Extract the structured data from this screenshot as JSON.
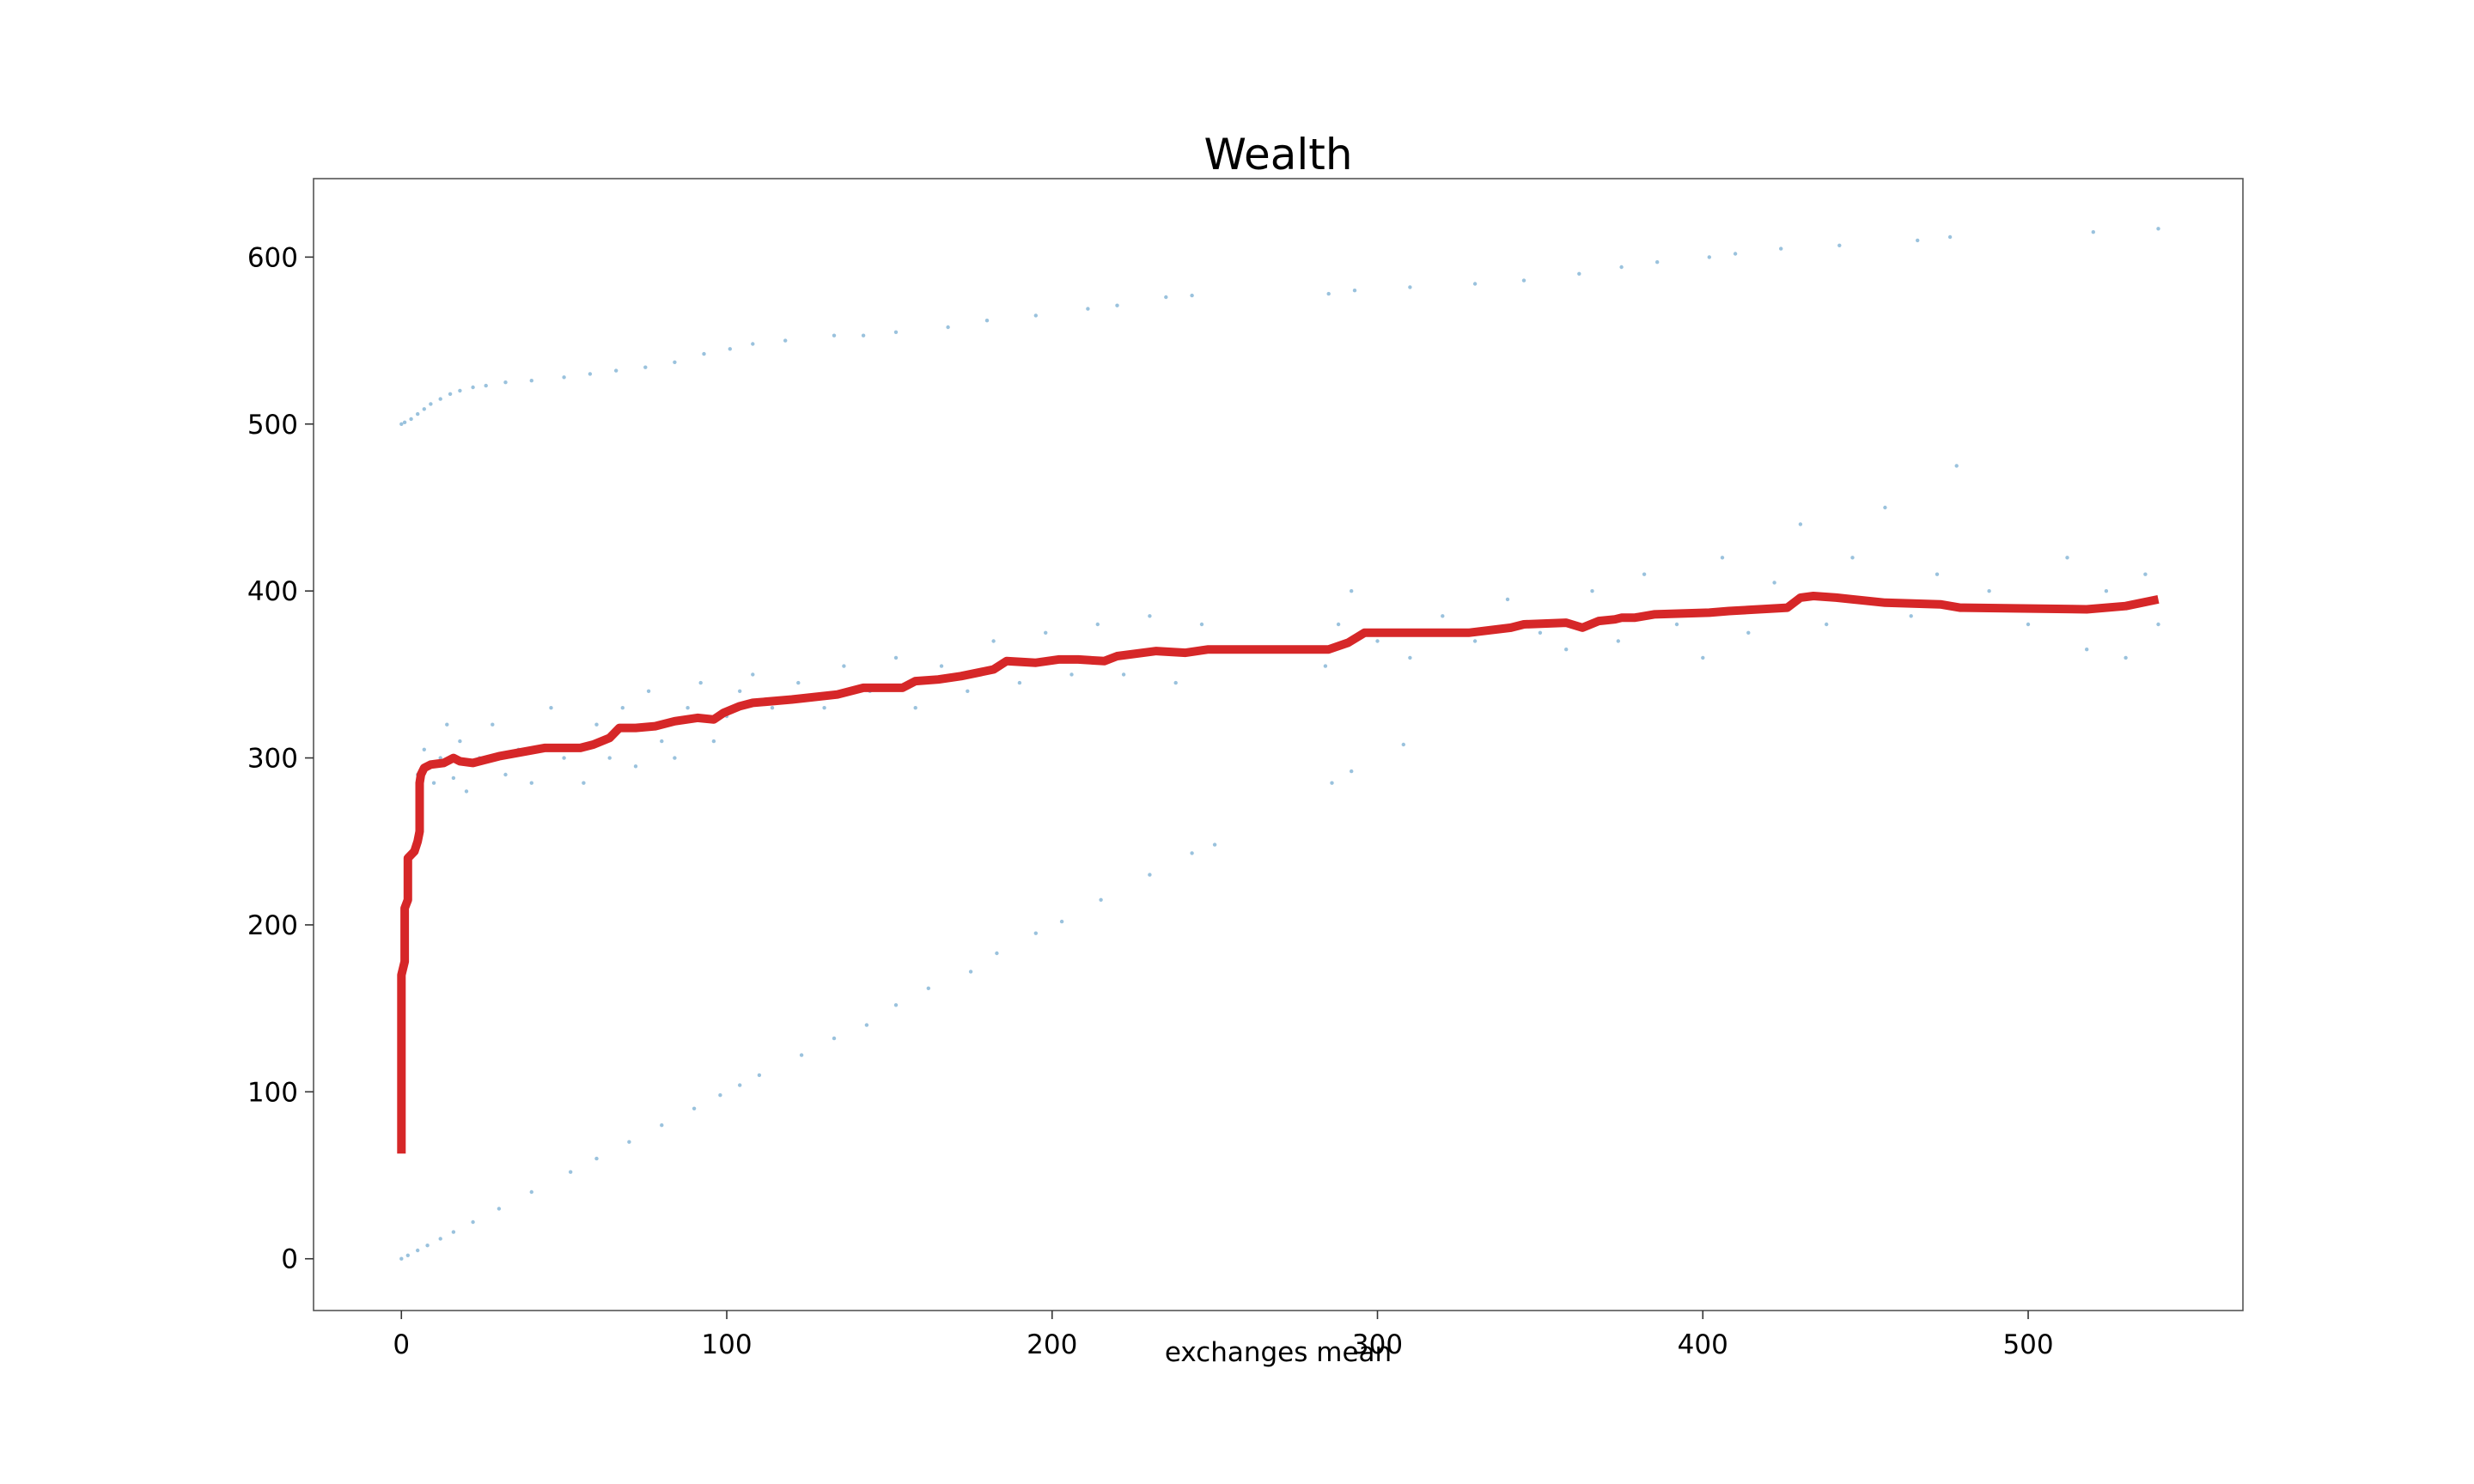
{
  "chart_data": {
    "type": "line",
    "title": "Wealth",
    "xlabel": "exchanges mean",
    "ylabel": "",
    "xlim": [
      -27,
      566
    ],
    "ylim": [
      -31,
      647
    ],
    "grid": false,
    "xticks": [
      0,
      100,
      200,
      300,
      400,
      500
    ],
    "yticks": [
      0,
      100,
      200,
      300,
      400,
      500,
      600
    ],
    "colors": {
      "line": "#d62728",
      "scatter": "#1f77b4",
      "frame": "#555555"
    },
    "series": [
      {
        "kind": "line",
        "values": [
          [
            0,
            63
          ],
          [
            0,
            170
          ],
          [
            1,
            178
          ],
          [
            1,
            210
          ],
          [
            2,
            215
          ],
          [
            2,
            240
          ],
          [
            4,
            244
          ],
          [
            5,
            250
          ],
          [
            5.6,
            256
          ],
          [
            5.6,
            285
          ],
          [
            6,
            290
          ],
          [
            7,
            294
          ],
          [
            9,
            296
          ],
          [
            13,
            297
          ],
          [
            16,
            300
          ],
          [
            18,
            298
          ],
          [
            22,
            297
          ],
          [
            30,
            301
          ],
          [
            44,
            306
          ],
          [
            55,
            306
          ],
          [
            59,
            308
          ],
          [
            64,
            312
          ],
          [
            67,
            318
          ],
          [
            72,
            318
          ],
          [
            78,
            319
          ],
          [
            84,
            322
          ],
          [
            91,
            324
          ],
          [
            96,
            323
          ],
          [
            99,
            327
          ],
          [
            104,
            331
          ],
          [
            108,
            333
          ],
          [
            120,
            335
          ],
          [
            134,
            338
          ],
          [
            142,
            342
          ],
          [
            154,
            342
          ],
          [
            158,
            346
          ],
          [
            165,
            347
          ],
          [
            172,
            349
          ],
          [
            182,
            353
          ],
          [
            186,
            358
          ],
          [
            195,
            357
          ],
          [
            202,
            359
          ],
          [
            208,
            359
          ],
          [
            216,
            358
          ],
          [
            220,
            361
          ],
          [
            232,
            364
          ],
          [
            241,
            363
          ],
          [
            248,
            365
          ],
          [
            285,
            365
          ],
          [
            291,
            369
          ],
          [
            296,
            375
          ],
          [
            328,
            375
          ],
          [
            341,
            378
          ],
          [
            345,
            380
          ],
          [
            358,
            381
          ],
          [
            363,
            378
          ],
          [
            368,
            382
          ],
          [
            373,
            383
          ],
          [
            375,
            384
          ],
          [
            379,
            384
          ],
          [
            385,
            386
          ],
          [
            402,
            387
          ],
          [
            408,
            388
          ],
          [
            426,
            390
          ],
          [
            430,
            396
          ],
          [
            434,
            397
          ],
          [
            441,
            396
          ],
          [
            456,
            393
          ],
          [
            473,
            392
          ],
          [
            479,
            390
          ],
          [
            518,
            389
          ],
          [
            530,
            391
          ],
          [
            540,
            395
          ]
        ]
      },
      {
        "kind": "scatter",
        "bands": [
          {
            "points": [
              [
                0,
                500
              ],
              [
                1,
                501
              ],
              [
                3,
                503
              ],
              [
                5,
                506
              ],
              [
                7,
                509
              ],
              [
                9,
                512
              ],
              [
                12,
                515
              ],
              [
                15,
                518
              ],
              [
                18,
                520
              ],
              [
                22,
                522
              ],
              [
                26,
                523
              ],
              [
                32,
                525
              ],
              [
                40,
                526
              ],
              [
                50,
                528
              ],
              [
                58,
                530
              ],
              [
                66,
                532
              ],
              [
                75,
                534
              ],
              [
                84,
                537
              ],
              [
                93,
                542
              ],
              [
                101,
                545
              ],
              [
                108,
                548
              ],
              [
                118,
                550
              ],
              [
                133,
                553
              ],
              [
                142,
                553
              ],
              [
                152,
                555
              ],
              [
                168,
                558
              ],
              [
                180,
                562
              ],
              [
                195,
                565
              ],
              [
                211,
                569
              ],
              [
                220,
                571
              ],
              [
                235,
                576
              ],
              [
                243,
                577
              ],
              [
                285,
                578
              ],
              [
                293,
                580
              ],
              [
                310,
                582
              ],
              [
                330,
                584
              ],
              [
                345,
                586
              ],
              [
                362,
                590
              ],
              [
                375,
                594
              ],
              [
                386,
                597
              ],
              [
                402,
                600
              ],
              [
                410,
                602
              ],
              [
                424,
                605
              ],
              [
                442,
                607
              ],
              [
                466,
                610
              ],
              [
                476,
                612
              ],
              [
                520,
                615
              ],
              [
                540,
                617
              ]
            ]
          },
          {
            "points": [
              [
                0,
                0
              ],
              [
                2,
                2
              ],
              [
                5,
                5
              ],
              [
                8,
                8
              ],
              [
                12,
                12
              ],
              [
                16,
                16
              ],
              [
                22,
                22
              ],
              [
                30,
                30
              ],
              [
                40,
                40
              ],
              [
                52,
                52
              ],
              [
                60,
                60
              ],
              [
                70,
                70
              ],
              [
                80,
                80
              ],
              [
                90,
                90
              ],
              [
                98,
                98
              ],
              [
                104,
                104
              ],
              [
                110,
                110
              ],
              [
                123,
                122
              ],
              [
                133,
                132
              ],
              [
                143,
                140
              ],
              [
                152,
                152
              ],
              [
                162,
                162
              ],
              [
                175,
                172
              ],
              [
                183,
                183
              ],
              [
                195,
                195
              ],
              [
                203,
                202
              ],
              [
                215,
                215
              ],
              [
                230,
                230
              ],
              [
                243,
                243
              ],
              [
                250,
                248
              ],
              [
                286,
                285
              ],
              [
                292,
                292
              ],
              [
                308,
                308
              ]
            ]
          },
          {
            "points": [
              [
                5,
                290
              ],
              [
                7,
                305
              ],
              [
                10,
                285
              ],
              [
                12,
                300
              ],
              [
                14,
                320
              ],
              [
                16,
                288
              ],
              [
                18,
                310
              ],
              [
                20,
                280
              ],
              [
                24,
                300
              ],
              [
                28,
                320
              ],
              [
                32,
                290
              ],
              [
                36,
                305
              ],
              [
                40,
                285
              ],
              [
                46,
                330
              ],
              [
                50,
                300
              ],
              [
                56,
                285
              ],
              [
                60,
                320
              ],
              [
                64,
                300
              ],
              [
                68,
                330
              ],
              [
                72,
                295
              ],
              [
                76,
                340
              ],
              [
                80,
                310
              ],
              [
                84,
                300
              ],
              [
                88,
                330
              ],
              [
                92,
                345
              ],
              [
                96,
                310
              ],
              [
                100,
                325
              ],
              [
                104,
                340
              ],
              [
                108,
                350
              ],
              [
                114,
                330
              ],
              [
                122,
                345
              ],
              [
                130,
                330
              ],
              [
                136,
                355
              ],
              [
                144,
                340
              ],
              [
                152,
                360
              ],
              [
                158,
                330
              ],
              [
                166,
                355
              ],
              [
                174,
                340
              ],
              [
                182,
                370
              ],
              [
                190,
                345
              ],
              [
                198,
                375
              ],
              [
                206,
                350
              ],
              [
                214,
                380
              ],
              [
                222,
                350
              ],
              [
                230,
                385
              ],
              [
                238,
                345
              ],
              [
                246,
                380
              ],
              [
                284,
                355
              ],
              [
                288,
                380
              ],
              [
                292,
                400
              ],
              [
                300,
                370
              ],
              [
                310,
                360
              ],
              [
                320,
                385
              ],
              [
                330,
                370
              ],
              [
                340,
                395
              ],
              [
                350,
                375
              ],
              [
                358,
                365
              ],
              [
                366,
                400
              ],
              [
                374,
                370
              ],
              [
                382,
                410
              ],
              [
                392,
                380
              ],
              [
                400,
                360
              ],
              [
                406,
                420
              ],
              [
                414,
                375
              ],
              [
                422,
                405
              ],
              [
                430,
                440
              ],
              [
                438,
                380
              ],
              [
                446,
                420
              ],
              [
                456,
                450
              ],
              [
                464,
                385
              ],
              [
                472,
                410
              ],
              [
                478,
                475
              ],
              [
                488,
                400
              ],
              [
                500,
                380
              ],
              [
                512,
                420
              ],
              [
                518,
                365
              ],
              [
                524,
                400
              ],
              [
                530,
                360
              ],
              [
                536,
                410
              ],
              [
                540,
                380
              ]
            ]
          }
        ]
      }
    ]
  }
}
